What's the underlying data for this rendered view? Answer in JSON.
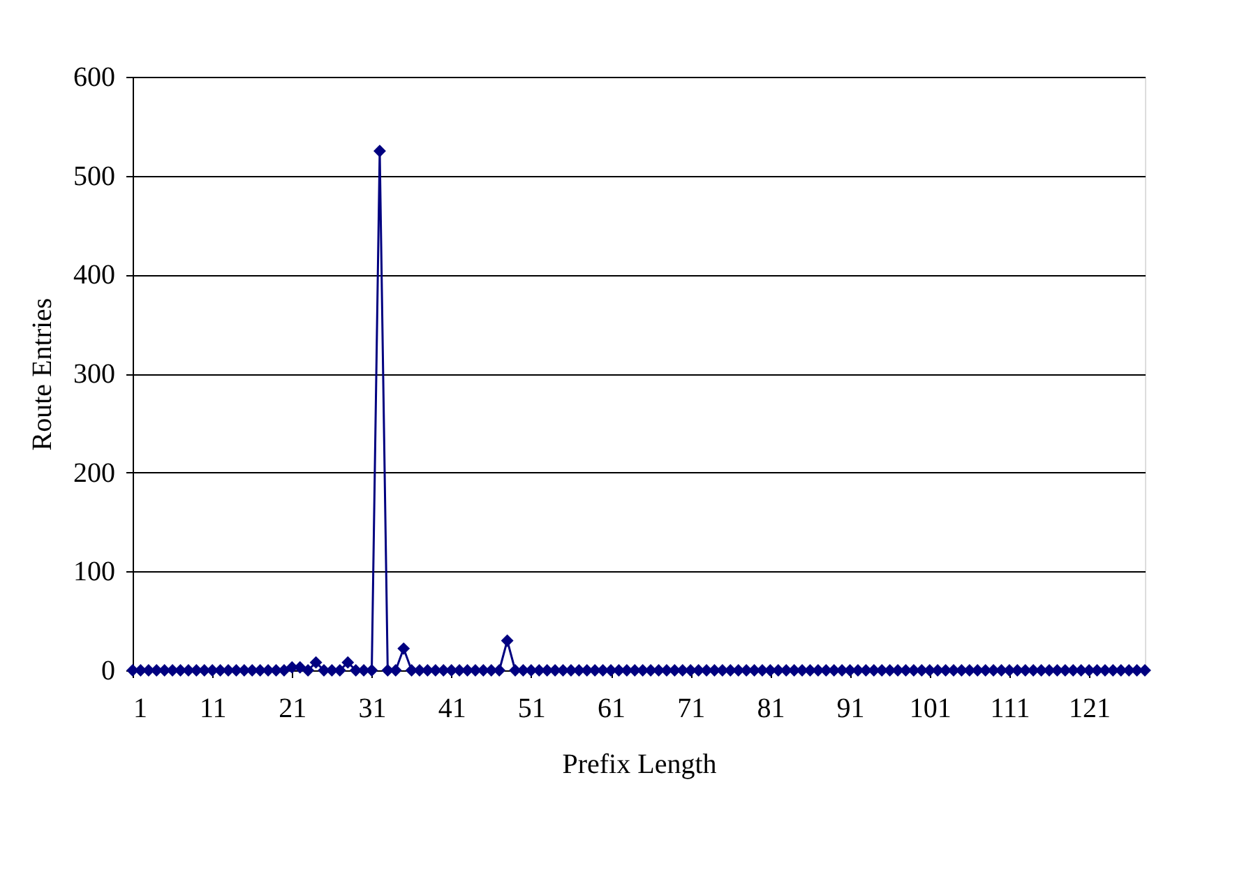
{
  "chart_data": {
    "type": "line",
    "xlabel": "Prefix Length",
    "ylabel": "Route Entries",
    "x": [
      1,
      2,
      3,
      4,
      5,
      6,
      7,
      8,
      9,
      10,
      11,
      12,
      13,
      14,
      15,
      16,
      17,
      18,
      19,
      20,
      21,
      22,
      23,
      24,
      25,
      26,
      27,
      28,
      29,
      30,
      31,
      32,
      33,
      34,
      35,
      36,
      37,
      38,
      39,
      40,
      41,
      42,
      43,
      44,
      45,
      46,
      47,
      48,
      49,
      50,
      51,
      52,
      53,
      54,
      55,
      56,
      57,
      58,
      59,
      60,
      61,
      62,
      63,
      64,
      65,
      66,
      67,
      68,
      69,
      70,
      71,
      72,
      73,
      74,
      75,
      76,
      77,
      78,
      79,
      80,
      81,
      82,
      83,
      84,
      85,
      86,
      87,
      88,
      89,
      90,
      91,
      92,
      93,
      94,
      95,
      96,
      97,
      98,
      99,
      100,
      101,
      102,
      103,
      104,
      105,
      106,
      107,
      108,
      109,
      110,
      111,
      112,
      113,
      114,
      115,
      116,
      117,
      118,
      119,
      120,
      121,
      122,
      123,
      124,
      125,
      126,
      127,
      128
    ],
    "series": [
      {
        "color": "#000080",
        "values": [
          0,
          0,
          0,
          0,
          0,
          0,
          0,
          0,
          0,
          0,
          0,
          0,
          0,
          0,
          0,
          0,
          0,
          0,
          0,
          0,
          3,
          3,
          0,
          8,
          0,
          0,
          0,
          8,
          0,
          0,
          0,
          525,
          0,
          0,
          22,
          0,
          0,
          0,
          0,
          0,
          0,
          0,
          0,
          0,
          0,
          0,
          0,
          30,
          0,
          0,
          0,
          0,
          0,
          0,
          0,
          0,
          0,
          0,
          0,
          0,
          0,
          0,
          0,
          0,
          0,
          0,
          0,
          0,
          0,
          0,
          0,
          0,
          0,
          0,
          0,
          0,
          0,
          0,
          0,
          0,
          0,
          0,
          0,
          0,
          0,
          0,
          0,
          0,
          0,
          0,
          0,
          0,
          0,
          0,
          0,
          0,
          0,
          0,
          0,
          0,
          0,
          0,
          0,
          0,
          0,
          0,
          0,
          0,
          0,
          0,
          0,
          0,
          0,
          0,
          0,
          0,
          0,
          0,
          0,
          0,
          0,
          0,
          0,
          0,
          0,
          0,
          0,
          0
        ]
      }
    ],
    "xlim": [
      1,
      128
    ],
    "xticks": [
      1,
      11,
      21,
      31,
      41,
      51,
      61,
      71,
      81,
      91,
      101,
      111,
      121
    ],
    "ylim": [
      0,
      600
    ],
    "yticks": [
      0,
      100,
      200,
      300,
      400,
      500,
      600
    ],
    "grid": "y",
    "marker": "diamond",
    "line_style": "solid"
  }
}
